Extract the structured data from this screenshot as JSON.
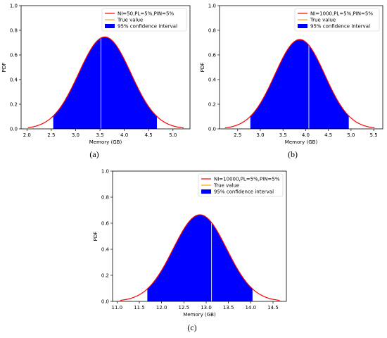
{
  "chart_data": [
    {
      "type": "area",
      "panel_label": "(a)",
      "legend": [
        "NI=50,PL=5%,PIN=5%",
        "True value",
        "95% confidence interval"
      ],
      "legend_position": "top-right",
      "xlabel": "Memory (GB)",
      "ylabel": "PDF",
      "xlim": [
        1.88,
        5.35
      ],
      "ylim": [
        0,
        1.0
      ],
      "xticks": [
        2.0,
        2.5,
        3.0,
        3.5,
        4.0,
        4.5,
        5.0
      ],
      "xtick_labels": [
        "2.0",
        "2.5",
        "3.0",
        "3.5",
        "4.0",
        "4.5",
        "5.0"
      ],
      "yticks": [
        0.0,
        0.2,
        0.4,
        0.6,
        0.8,
        1.0
      ],
      "ytick_labels": [
        "0.0",
        "0.2",
        "0.4",
        "0.6",
        "0.8",
        "1.0"
      ],
      "distribution": {
        "mean": 3.6,
        "std": 0.535,
        "x_range": [
          2.02,
          5.22
        ]
      },
      "confidence_interval": [
        2.54,
        4.67
      ],
      "true_value": 3.52,
      "colors": {
        "pdf_line": "#ff0000",
        "true_value": "#ffa500",
        "ci_fill": "#0000ff"
      }
    },
    {
      "type": "area",
      "panel_label": "(b)",
      "legend": [
        "NI=1000,PL=5%,PIN=5%",
        "True value",
        "95% confidence interval"
      ],
      "legend_position": "top-right",
      "xlabel": "Memory (GB)",
      "ylabel": "PDF",
      "xlim": [
        2.1,
        5.7
      ],
      "ylim": [
        0,
        1.0
      ],
      "xticks": [
        2.5,
        3.0,
        3.5,
        4.0,
        4.5,
        5.0,
        5.5
      ],
      "xtick_labels": [
        "2.5",
        "3.0",
        "3.5",
        "4.0",
        "4.5",
        "5.0",
        "5.5"
      ],
      "yticks": [
        0.0,
        0.2,
        0.4,
        0.6,
        0.8,
        1.0
      ],
      "ytick_labels": [
        "0.0",
        "0.2",
        "0.4",
        "0.6",
        "0.8",
        "1.0"
      ],
      "distribution": {
        "mean": 3.87,
        "std": 0.55,
        "x_range": [
          2.22,
          5.52
        ]
      },
      "confidence_interval": [
        2.78,
        4.95
      ],
      "true_value": 4.07,
      "colors": {
        "pdf_line": "#ff0000",
        "true_value": "#ffa500",
        "ci_fill": "#0000ff"
      }
    },
    {
      "type": "area",
      "panel_label": "(c)",
      "legend": [
        "NI=10000,PL=5%,PIN=5%",
        "True value",
        "95% confidence interval"
      ],
      "legend_position": "top-right",
      "xlabel": "Memory (GB)",
      "ylabel": "PDF",
      "xlim": [
        10.9,
        14.8
      ],
      "ylim": [
        0,
        1.0
      ],
      "xticks": [
        11.0,
        11.5,
        12.0,
        12.5,
        13.0,
        13.5,
        14.0,
        14.5
      ],
      "xtick_labels": [
        "11.0",
        "11.5",
        "12.0",
        "12.5",
        "13.0",
        "13.5",
        "14.0",
        "14.5"
      ],
      "yticks": [
        0.0,
        0.2,
        0.4,
        0.6,
        0.8,
        1.0
      ],
      "ytick_labels": [
        "0.0",
        "0.2",
        "0.4",
        "0.6",
        "0.8",
        "1.0"
      ],
      "distribution": {
        "mean": 12.86,
        "std": 0.6,
        "x_range": [
          11.07,
          14.65
        ]
      },
      "confidence_interval": [
        11.68,
        14.04
      ],
      "true_value": 13.12,
      "colors": {
        "pdf_line": "#ff0000",
        "true_value": "#ffa500",
        "ci_fill": "#0000ff"
      }
    }
  ]
}
